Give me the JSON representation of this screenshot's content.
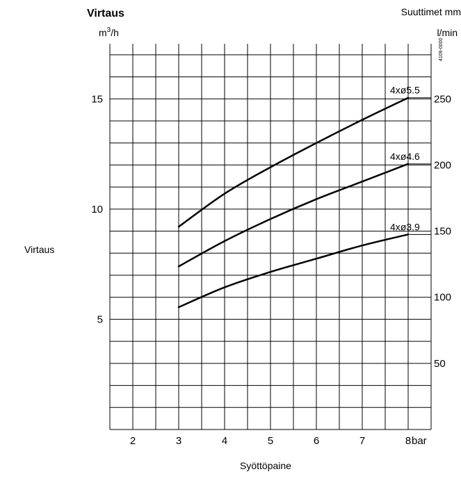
{
  "chart_data": {
    "type": "line",
    "title": "Virtaus",
    "left_unit": "m3/h",
    "right_header": "Suuttimet mm",
    "right_unit": "l/min",
    "ylabel": "Virtaus",
    "xlabel": "Syöttöpaine",
    "x_unit": "bar",
    "code": "4109-0000",
    "xlim": [
      1.5,
      8.5
    ],
    "ylim": [
      0,
      17.5
    ],
    "x_ticks": [
      2,
      3,
      4,
      5,
      6,
      7,
      8
    ],
    "y_ticks_left": [
      5,
      10,
      15
    ],
    "y_ticks_right": [
      50,
      100,
      150,
      200,
      250
    ],
    "series": [
      {
        "name": "4xø5.5",
        "x": [
          3,
          4,
          5,
          6,
          7,
          8
        ],
        "y": [
          9.2,
          10.7,
          11.9,
          13.0,
          14.05,
          15.05
        ]
      },
      {
        "name": "4xø4.6",
        "x": [
          3,
          4,
          5,
          6,
          7,
          8
        ],
        "y": [
          7.4,
          8.55,
          9.55,
          10.45,
          11.25,
          12.05
        ]
      },
      {
        "name": "4xø3.9",
        "x": [
          3,
          4,
          5,
          6,
          7,
          8
        ],
        "y": [
          5.55,
          6.45,
          7.15,
          7.75,
          8.35,
          8.85
        ]
      }
    ]
  }
}
